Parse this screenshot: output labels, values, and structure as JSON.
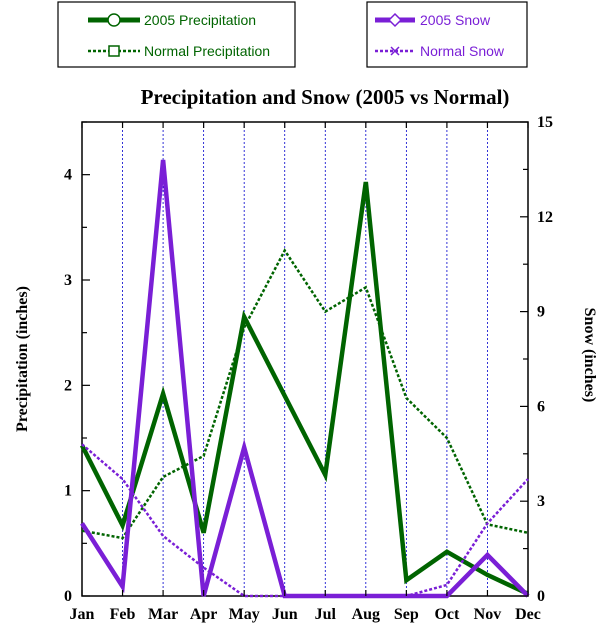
{
  "chart_data": {
    "type": "line",
    "title": "Precipitation and Snow (2005 vs Normal)",
    "categories": [
      "Jan",
      "Feb",
      "Mar",
      "Apr",
      "May",
      "Jun",
      "Jul",
      "Aug",
      "Sep",
      "Oct",
      "Nov",
      "Dec"
    ],
    "y_left": {
      "label": "Precipitation (inches)",
      "range": [
        0,
        4.5
      ],
      "ticks": [
        "0",
        "1",
        "2",
        "3",
        "4"
      ]
    },
    "y_right": {
      "label": "Snow (inches)",
      "range": [
        0,
        15
      ],
      "ticks": [
        "0",
        "3",
        "6",
        "9",
        "12",
        "15"
      ]
    },
    "grid": "vertical dotted lines at each month",
    "legend": "top, two boxes",
    "series": [
      {
        "name": "2005 Precipitation",
        "axis": "left",
        "color": "#006400",
        "style": "solid-thick",
        "values": [
          1.43,
          0.67,
          1.92,
          0.6,
          2.65,
          1.9,
          1.15,
          3.93,
          0.15,
          0.42,
          0.2,
          0.02
        ]
      },
      {
        "name": "Normal Precipitation",
        "axis": "left",
        "color": "#006400",
        "style": "dotted",
        "values": [
          0.62,
          0.55,
          1.13,
          1.33,
          2.55,
          3.28,
          2.7,
          2.93,
          1.88,
          1.5,
          0.68,
          0.6
        ]
      },
      {
        "name": "2005 Snow",
        "axis": "right",
        "color": "#7a1fd6",
        "style": "solid-thick",
        "values": [
          2.3,
          0.3,
          13.8,
          0.0,
          4.7,
          0.0,
          0.0,
          0.0,
          0.0,
          0.0,
          1.3,
          0.0
        ]
      },
      {
        "name": "Normal Snow",
        "axis": "right",
        "color": "#7a1fd6",
        "style": "dotted",
        "values": [
          4.8,
          3.7,
          1.9,
          0.9,
          0.0,
          0.0,
          0.0,
          0.0,
          0.0,
          0.35,
          2.3,
          3.7
        ]
      }
    ]
  }
}
